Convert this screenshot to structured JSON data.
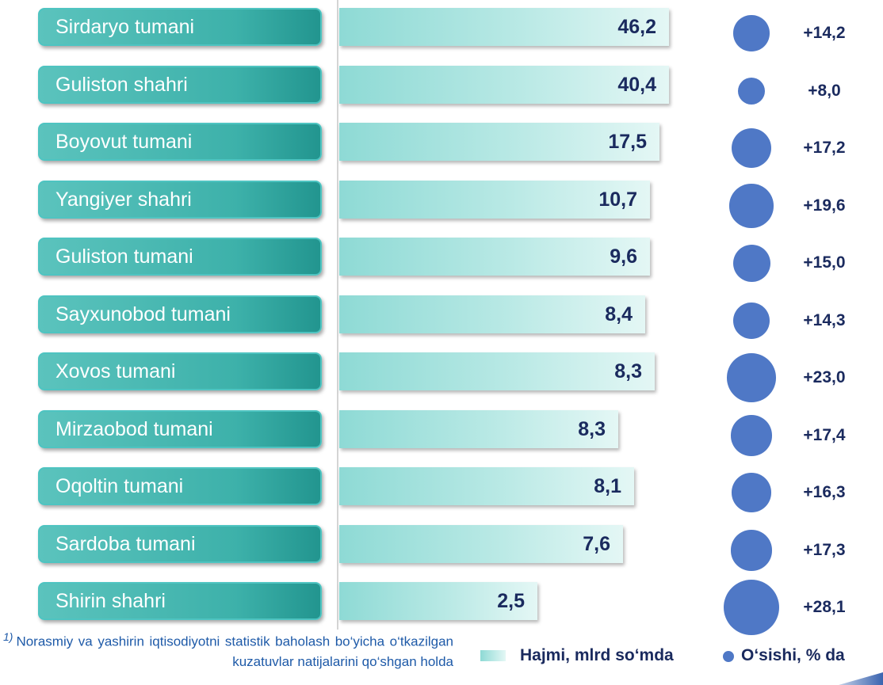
{
  "chart_data": {
    "type": "bar",
    "orientation": "horizontal",
    "categories": [
      "Sirdaryo tumani",
      "Guliston shahri",
      "Boyovut tumani",
      "Yangiyer shahri",
      "Guliston tumani",
      "Sayxunobod tumani",
      "Xovos tumani",
      "Mirzaobod tumani",
      "Oqoltin tumani",
      "Sardoba tumani",
      "Shirin shahri"
    ],
    "series": [
      {
        "name": "Hajmi, mlrd so‘mda",
        "type": "bar",
        "values": [
          46.2,
          40.4,
          17.5,
          10.7,
          9.6,
          8.4,
          8.3,
          8.3,
          8.1,
          7.6,
          2.5
        ],
        "labels": [
          "46,2",
          "40,4",
          "17,5",
          "10,7",
          "9,6",
          "8,4",
          "8,3",
          "8,3",
          "8,1",
          "7,6",
          "2,5"
        ],
        "color": "#9fe0db"
      },
      {
        "name": "O‘sishi, % da",
        "type": "bubble",
        "values": [
          14.2,
          8.0,
          17.2,
          19.6,
          15.0,
          14.3,
          23.0,
          17.4,
          16.3,
          17.3,
          28.1
        ],
        "labels": [
          "+14,2",
          "+8,0",
          "+17,2",
          "+19,6",
          "+15,0",
          "+14,3",
          "+23,0",
          "+17,4",
          "+16,3",
          "+17,3",
          "+28,1"
        ],
        "color": "#4f78c6"
      }
    ],
    "legend": {
      "position": "bottom-right",
      "items": [
        "Hajmi, mlrd so‘mda",
        "O‘sishi, % da"
      ]
    },
    "footnote": {
      "marker": "1)",
      "text": "Norasmiy va yashirin iqtisodiyotni statistik baholash bo‘yicha o‘tkazilgan kuzatuvlar natijalarini qo‘shgan holda"
    },
    "grid": false
  }
}
